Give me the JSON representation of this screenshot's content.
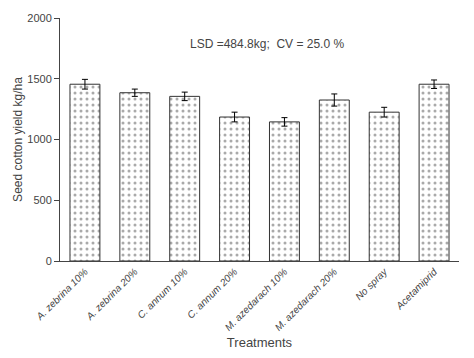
{
  "chart_data": {
    "type": "bar",
    "categories": [
      "A. zebrina 10%",
      "A. zebrina 20%",
      "C. annum 10%",
      "C. annum 20%",
      "M. azedarach 10%",
      "M. azedarach 20%",
      "No spray",
      "Acetamiprid"
    ],
    "values": [
      1455,
      1385,
      1355,
      1185,
      1145,
      1325,
      1225,
      1455
    ],
    "errors": [
      40,
      30,
      35,
      40,
      35,
      50,
      40,
      35
    ],
    "ylabel": "Seed cotton yield kg/ha",
    "xlabel": "Treatments",
    "annotation": "LSD =484.8kg;  CV = 25.0 %",
    "ylim": [
      0,
      2000
    ],
    "yticks": [
      0,
      500,
      1000,
      1500,
      2000
    ],
    "color": "#ffffff",
    "grid": false
  }
}
